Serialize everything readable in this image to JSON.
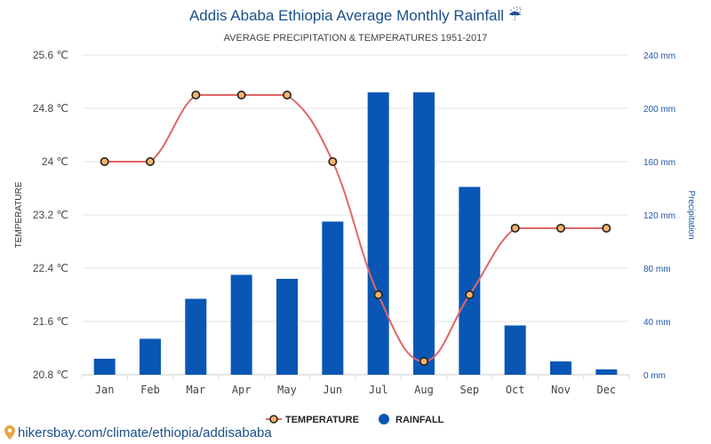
{
  "chart_data": {
    "type": "bar+line",
    "title": "Addis Ababa Ethiopia Average Monthly Rainfall ☔",
    "subtitle": "AVERAGE PRECIPITATION & TEMPERATURES 1951-2017",
    "categories": [
      "Jan",
      "Feb",
      "Mar",
      "Apr",
      "May",
      "Jun",
      "Jul",
      "Aug",
      "Sep",
      "Oct",
      "Nov",
      "Dec"
    ],
    "y_left": {
      "label": "TEMPERATURE",
      "range": [
        20.8,
        25.6
      ],
      "ticks": [
        "20.8 ℃",
        "21.6 ℃",
        "22.4 ℃",
        "23.2 ℃",
        "24 ℃",
        "24.8 ℃",
        "25.6 ℃"
      ],
      "tick_values": [
        20.8,
        21.6,
        22.4,
        23.2,
        24.0,
        24.8,
        25.6
      ]
    },
    "y_right": {
      "label": "Precipitation",
      "range": [
        0,
        240
      ],
      "ticks": [
        "0 mm",
        "40 mm",
        "80 mm",
        "120 mm",
        "160 mm",
        "200 mm",
        "240 mm"
      ],
      "tick_values": [
        0,
        40,
        80,
        120,
        160,
        200,
        240
      ]
    },
    "series": [
      {
        "name": "TEMPERATURE",
        "kind": "line",
        "axis": "left",
        "color": "#e06666",
        "marker_fill": "#f6b26b",
        "values": [
          24.0,
          24.0,
          25.0,
          25.0,
          25.0,
          24.0,
          22.0,
          21.0,
          22.0,
          23.0,
          23.0,
          23.0
        ]
      },
      {
        "name": "RAINFALL",
        "kind": "bar",
        "axis": "right",
        "color": "#0a56b5",
        "values": [
          12,
          27,
          57,
          75,
          72,
          115,
          212,
          212,
          141,
          37,
          10,
          4
        ]
      }
    ],
    "grid": true,
    "legend": "bottom-center"
  },
  "footer": {
    "text": "hikersbay.com/climate/ethiopia/addisababa"
  }
}
